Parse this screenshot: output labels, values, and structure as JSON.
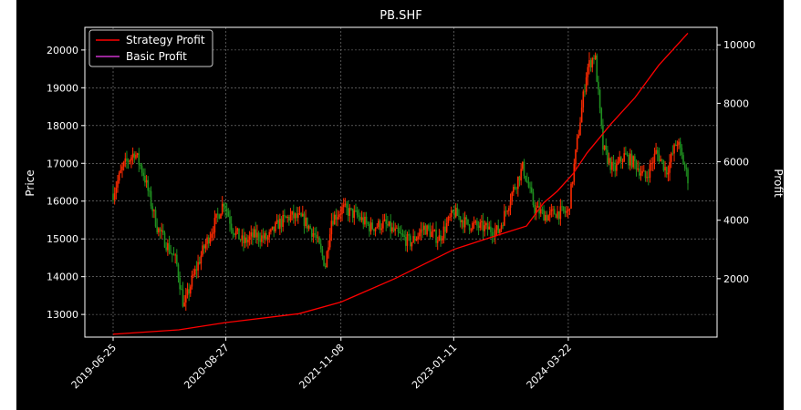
{
  "colors": {
    "background": "#000000",
    "axes": "#ffffff",
    "grid": "#888888",
    "up_candle": "#ff2a00",
    "down_candle": "#1f8f1f",
    "strategy": "#ff0000",
    "basic": "#cc33cc"
  },
  "chart_data": {
    "type": "line",
    "title": "PB.SHF",
    "xlabel": "",
    "ylabel": "Price",
    "ylabel_right": "Profit",
    "x_tick_labels": [
      "2019-06-25",
      "2020-08-27",
      "2021-11-08",
      "2023-01-11",
      "2024-03-22"
    ],
    "x_range": [
      "2019-06-25",
      "2025-06-20"
    ],
    "y_left": {
      "range": [
        12400,
        20600
      ],
      "ticks": [
        13000,
        14000,
        15000,
        16000,
        17000,
        18000,
        19000,
        20000
      ]
    },
    "y_right": {
      "range": [
        0,
        10600
      ],
      "ticks": [
        2000,
        4000,
        6000,
        8000,
        10000
      ]
    },
    "grid": true,
    "legend": {
      "placement": "top-left",
      "entries": [
        {
          "name": "Strategy Profit",
          "color": "#ff0000"
        },
        {
          "name": "Basic Profit",
          "color": "#cc33cc"
        }
      ]
    },
    "price_series": {
      "name": "",
      "x": [
        "2019-06-25",
        "2019-08-01",
        "2019-09-15",
        "2019-10-20",
        "2019-12-10",
        "2020-02-20",
        "2020-03-20",
        "2020-04-20",
        "2020-06-01",
        "2020-07-15",
        "2020-08-20",
        "2020-09-20",
        "2020-11-01",
        "2020-12-15",
        "2021-02-01",
        "2021-03-15",
        "2021-05-01",
        "2021-06-20",
        "2021-08-01",
        "2021-09-10",
        "2021-10-01",
        "2021-11-15",
        "2022-01-10",
        "2022-03-01",
        "2022-04-20",
        "2022-06-15",
        "2022-08-01",
        "2022-09-20",
        "2022-11-15",
        "2023-01-11",
        "2023-03-01",
        "2023-05-01",
        "2023-07-01",
        "2023-08-20",
        "2023-10-01",
        "2023-11-15",
        "2024-01-01",
        "2024-02-01",
        "2024-03-22",
        "2024-04-20",
        "2024-06-01",
        "2024-07-01",
        "2024-08-01",
        "2024-09-10",
        "2024-10-20",
        "2024-12-01",
        "2025-01-10",
        "2025-02-20",
        "2025-04-01",
        "2025-05-10",
        "2025-06-20"
      ],
      "y": [
        16200,
        16900,
        17300,
        16700,
        15300,
        14400,
        13200,
        13900,
        14700,
        15400,
        16000,
        15300,
        14900,
        15100,
        15000,
        15400,
        15600,
        15500,
        15100,
        14300,
        15500,
        15800,
        15600,
        15300,
        15400,
        15100,
        14900,
        15300,
        15000,
        15700,
        15400,
        15300,
        15200,
        16200,
        16900,
        15800,
        15600,
        15700,
        15700,
        17300,
        19500,
        19900,
        17400,
        16800,
        17200,
        17000,
        16600,
        17300,
        16800,
        17600,
        16600
      ]
    },
    "series": [
      {
        "name": "Strategy Profit",
        "x": [
          "2019-06-25",
          "2020-03-01",
          "2020-08-27",
          "2021-06-01",
          "2021-11-08",
          "2022-06-01",
          "2023-01-11",
          "2023-07-01",
          "2023-10-15",
          "2023-12-20",
          "2024-02-10",
          "2024-04-10",
          "2024-06-01",
          "2024-09-01",
          "2024-12-01",
          "2025-03-01",
          "2025-06-20"
        ],
        "values": [
          100,
          250,
          500,
          800,
          1200,
          2000,
          3000,
          3500,
          3800,
          4600,
          5000,
          5600,
          6300,
          7300,
          8200,
          9300,
          10400
        ]
      },
      {
        "name": "Basic Profit",
        "x": [],
        "values": []
      }
    ]
  }
}
